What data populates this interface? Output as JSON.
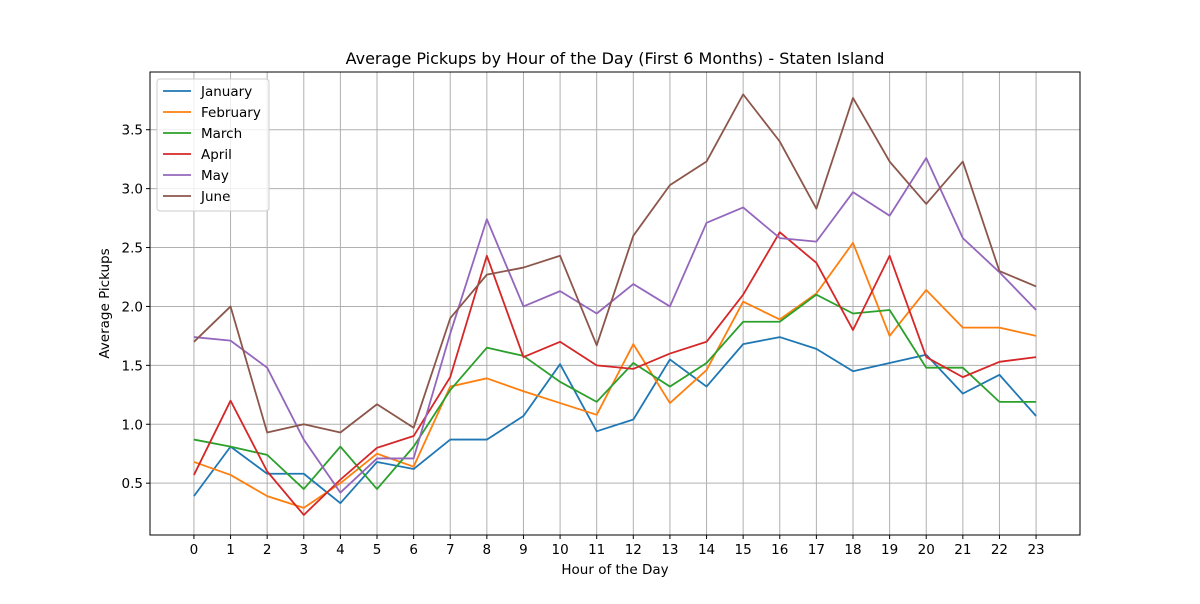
{
  "chart_data": {
    "type": "line",
    "title": "Average Pickups by Hour of the Day (First 6 Months) - Staten Island",
    "xlabel": "Hour of the Day",
    "ylabel": "Average Pickups",
    "x": [
      0,
      1,
      2,
      3,
      4,
      5,
      6,
      7,
      8,
      9,
      10,
      11,
      12,
      13,
      14,
      15,
      16,
      17,
      18,
      19,
      20,
      21,
      22,
      23
    ],
    "x_tick_labels": [
      "0",
      "1",
      "2",
      "3",
      "4",
      "5",
      "6",
      "7",
      "8",
      "9",
      "10",
      "11",
      "12",
      "13",
      "14",
      "15",
      "16",
      "17",
      "18",
      "19",
      "20",
      "21",
      "22",
      "23"
    ],
    "y_ticks": [
      0.5,
      1.0,
      1.5,
      2.0,
      2.5,
      3.0,
      3.5
    ],
    "y_tick_labels": [
      "0.5",
      "1.0",
      "1.5",
      "2.0",
      "2.5",
      "3.0",
      "3.5"
    ],
    "xlim": [
      -1.2,
      24.2
    ],
    "ylim": [
      0.06,
      3.99
    ],
    "grid": true,
    "legend_position": "upper-left",
    "series": [
      {
        "name": "January",
        "color": "#1f77b4",
        "values": [
          0.39,
          0.81,
          0.58,
          0.58,
          0.33,
          0.68,
          0.62,
          0.87,
          0.87,
          1.07,
          1.51,
          0.94,
          1.04,
          1.55,
          1.32,
          1.68,
          1.74,
          1.64,
          1.45,
          1.52,
          1.59,
          1.26,
          1.42,
          1.07
        ]
      },
      {
        "name": "February",
        "color": "#ff7f0e",
        "values": [
          0.68,
          0.57,
          0.39,
          0.29,
          0.5,
          0.75,
          0.64,
          1.32,
          1.39,
          1.28,
          1.18,
          1.08,
          1.68,
          1.18,
          1.46,
          2.04,
          1.89,
          2.11,
          2.54,
          1.75,
          2.14,
          1.82,
          1.82,
          1.75
        ]
      },
      {
        "name": "March",
        "color": "#2ca02c",
        "values": [
          0.87,
          0.81,
          0.74,
          0.45,
          0.81,
          0.45,
          0.81,
          1.29,
          1.65,
          1.58,
          1.36,
          1.19,
          1.52,
          1.32,
          1.52,
          1.87,
          1.87,
          2.1,
          1.94,
          1.97,
          1.48,
          1.48,
          1.19,
          1.19
        ]
      },
      {
        "name": "April",
        "color": "#d62728",
        "values": [
          0.57,
          1.2,
          0.6,
          0.23,
          0.53,
          0.8,
          0.9,
          1.4,
          2.43,
          1.57,
          1.7,
          1.5,
          1.47,
          1.6,
          1.7,
          2.1,
          2.63,
          2.37,
          1.8,
          2.43,
          1.57,
          1.4,
          1.53,
          1.57
        ]
      },
      {
        "name": "May",
        "color": "#9467bd",
        "values": [
          1.74,
          1.71,
          1.48,
          0.87,
          0.42,
          0.71,
          0.71,
          1.77,
          2.74,
          2.0,
          2.13,
          1.94,
          2.19,
          2.0,
          2.71,
          2.84,
          2.58,
          2.55,
          2.97,
          2.77,
          3.26,
          2.58,
          2.29,
          1.97
        ]
      },
      {
        "name": "June",
        "color": "#8c564b",
        "values": [
          1.7,
          2.0,
          0.93,
          1.0,
          0.93,
          1.17,
          0.97,
          1.9,
          2.27,
          2.33,
          2.43,
          1.67,
          2.6,
          3.03,
          3.23,
          3.8,
          3.4,
          2.83,
          3.77,
          3.23,
          2.87,
          3.23,
          2.3,
          2.17
        ]
      }
    ]
  }
}
